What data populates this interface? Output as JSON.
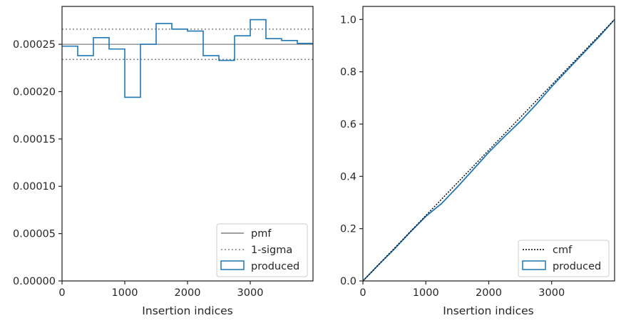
{
  "chart_data": [
    {
      "type": "step",
      "xlabel": "Insertion indices",
      "ylabel": "",
      "xlim": [
        0,
        4000
      ],
      "ylim": [
        0,
        0.00029
      ],
      "xticks": [
        0,
        1000,
        2000,
        3000
      ],
      "xtick_labels": [
        "0",
        "1000",
        "2000",
        "3000"
      ],
      "yticks": [
        0,
        5e-05,
        0.0001,
        0.00015,
        0.0002,
        0.00025
      ],
      "ytick_labels": [
        "0.00000",
        "0.00005",
        "0.00010",
        "0.00015",
        "0.00020",
        "0.00025"
      ],
      "grid": false,
      "legend_position": "lower-right",
      "pmf": {
        "name": "pmf",
        "value": 0.00025,
        "color": "#808080"
      },
      "sigma": {
        "name": "1-sigma",
        "values": [
          0.000234,
          0.000266
        ],
        "color": "#808080"
      },
      "series": [
        {
          "name": "produced",
          "color": "#1f77b4",
          "bin_edges": [
            0,
            250,
            500,
            750,
            1000,
            1250,
            1500,
            1750,
            2000,
            2250,
            2500,
            2750,
            3000,
            3250,
            3500,
            3750,
            4000
          ],
          "values": [
            0.000248,
            0.000238,
            0.000257,
            0.000245,
            0.000194,
            0.00025,
            0.000272,
            0.000266,
            0.000264,
            0.000238,
            0.000233,
            0.000259,
            0.000276,
            0.000256,
            0.000254,
            0.000251
          ]
        }
      ]
    },
    {
      "type": "line",
      "xlabel": "Insertion indices",
      "ylabel": "",
      "xlim": [
        0,
        4000
      ],
      "ylim": [
        0,
        1.05
      ],
      "xticks": [
        0,
        1000,
        2000,
        3000
      ],
      "xtick_labels": [
        "0",
        "1000",
        "2000",
        "3000"
      ],
      "yticks": [
        0,
        0.2,
        0.4,
        0.6,
        0.8,
        1.0
      ],
      "ytick_labels": [
        "0.0",
        "0.2",
        "0.4",
        "0.6",
        "0.8",
        "1.0"
      ],
      "grid": false,
      "legend_position": "lower-right",
      "cmf": {
        "name": "cmf",
        "x": [
          0,
          4000
        ],
        "y": [
          0,
          1.0
        ],
        "color": "#000000"
      },
      "series": [
        {
          "name": "produced",
          "color": "#1f77b4",
          "x": [
            0,
            250,
            500,
            750,
            1000,
            1250,
            1500,
            1750,
            2000,
            2250,
            2500,
            2750,
            3000,
            3250,
            3500,
            3750,
            4000
          ],
          "y": [
            0,
            0.062,
            0.122,
            0.186,
            0.247,
            0.296,
            0.359,
            0.425,
            0.492,
            0.552,
            0.61,
            0.674,
            0.743,
            0.807,
            0.87,
            0.933,
            1.0
          ]
        }
      ]
    }
  ]
}
